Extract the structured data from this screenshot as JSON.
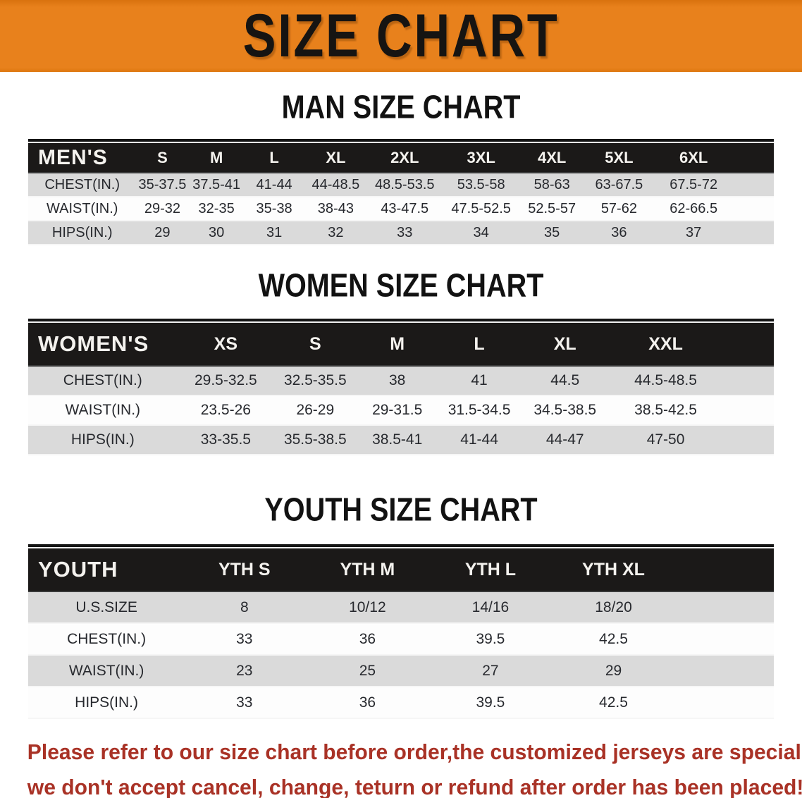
{
  "banner": {
    "title": "SIZE CHART"
  },
  "colors": {
    "banner_orange": "#E8811C",
    "banner_text": "#161412",
    "table_header_black": "#1B1918",
    "row_gray": "#DADADA",
    "row_white": "#FDFDFD",
    "disclaimer_red": "#A93226"
  },
  "sections": [
    {
      "heading": "MAN SIZE CHART",
      "table": {
        "header_label": "MEN'S",
        "columns": [
          "S",
          "M",
          "L",
          "XL",
          "2XL",
          "3XL",
          "4XL",
          "5XL",
          "6XL"
        ],
        "rows": [
          {
            "label": "CHEST(IN.)",
            "values": [
              "35-37.5",
              "37.5-41",
              "41-44",
              "44-48.5",
              "48.5-53.5",
              "53.5-58",
              "58-63",
              "63-67.5",
              "67.5-72"
            ]
          },
          {
            "label": "WAIST(IN.)",
            "values": [
              "29-32",
              "32-35",
              "35-38",
              "38-43",
              "43-47.5",
              "47.5-52.5",
              "52.5-57",
              "57-62",
              "62-66.5"
            ]
          },
          {
            "label": "HIPS(IN.)",
            "values": [
              "29",
              "30",
              "31",
              "32",
              "33",
              "34",
              "35",
              "36",
              "37"
            ]
          }
        ]
      }
    },
    {
      "heading": "WOMEN SIZE CHART",
      "table": {
        "header_label": "WOMEN'S",
        "columns": [
          "XS",
          "S",
          "M",
          "L",
          "XL",
          "XXL"
        ],
        "rows": [
          {
            "label": "CHEST(IN.)",
            "values": [
              "29.5-32.5",
              "32.5-35.5",
              "38",
              "41",
              "44.5",
              "44.5-48.5"
            ]
          },
          {
            "label": "WAIST(IN.)",
            "values": [
              "23.5-26",
              "26-29",
              "29-31.5",
              "31.5-34.5",
              "34.5-38.5",
              "38.5-42.5"
            ]
          },
          {
            "label": "HIPS(IN.)",
            "values": [
              "33-35.5",
              "35.5-38.5",
              "38.5-41",
              "41-44",
              "44-47",
              "47-50"
            ]
          }
        ]
      }
    },
    {
      "heading": "YOUTH SIZE CHART",
      "table": {
        "header_label": "YOUTH",
        "columns": [
          "YTH S",
          "YTH M",
          "YTH L",
          "YTH XL"
        ],
        "rows": [
          {
            "label": "U.S.SIZE",
            "values": [
              "8",
              "10/12",
              "14/16",
              "18/20"
            ]
          },
          {
            "label": "CHEST(IN.)",
            "values": [
              "33",
              "36",
              "39.5",
              "42.5"
            ]
          },
          {
            "label": "WAIST(IN.)",
            "values": [
              "23",
              "25",
              "27",
              "29"
            ]
          },
          {
            "label": "HIPS(IN.)",
            "values": [
              "33",
              "36",
              "39.5",
              "42.5"
            ]
          }
        ]
      }
    }
  ],
  "disclaimer": {
    "line1": "Please refer to our size chart before order,the customized jerseys are special products,",
    "line2": "we don't accept cancel, change, teturn or refund after order has been placed!"
  }
}
